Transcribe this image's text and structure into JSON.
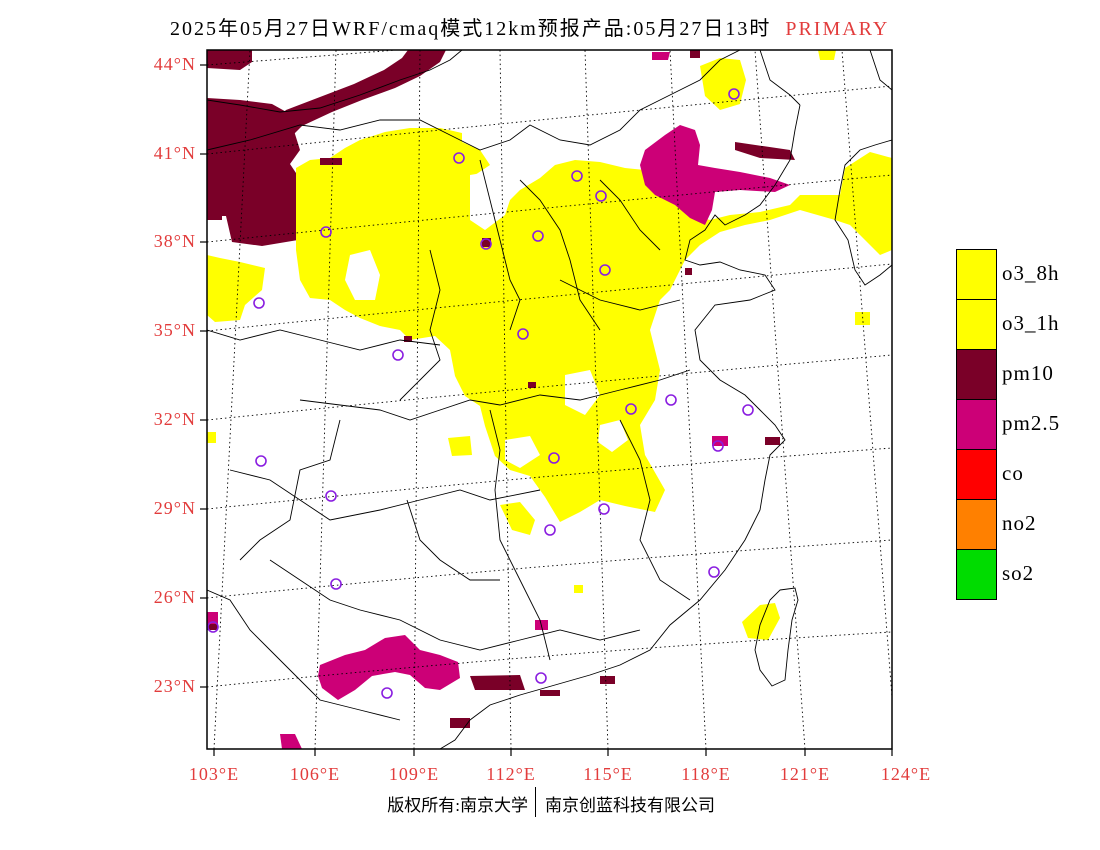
{
  "title": {
    "text": "2025年05月27日WRF/cmaq模式12km预报产品:05月27日13时",
    "tag": "PRIMARY",
    "tag_color": "#e23c3c"
  },
  "axes": {
    "label_color": "#e23c3c",
    "lat_labels": [
      "44°N",
      "41°N",
      "38°N",
      "35°N",
      "32°N",
      "29°N",
      "26°N",
      "23°N"
    ],
    "lon_labels": [
      "103°E",
      "106°E",
      "109°E",
      "112°E",
      "115°E",
      "118°E",
      "121°E",
      "124°E"
    ]
  },
  "legend": [
    {
      "key": "o3_8h",
      "label": "o3_8h",
      "color": "#ffff00"
    },
    {
      "key": "o3_1h",
      "label": "o3_1h",
      "color": "#ffff00"
    },
    {
      "key": "pm10",
      "label": "pm10",
      "color": "#7a0028"
    },
    {
      "key": "pm25",
      "label": "pm2.5",
      "color": "#cc0077"
    },
    {
      "key": "co",
      "label": "co",
      "color": "#ff0000"
    },
    {
      "key": "no2",
      "label": "no2",
      "color": "#ff8000"
    },
    {
      "key": "so2",
      "label": "so2",
      "color": "#00dc00"
    }
  ],
  "colors": {
    "city_marker": "#8a1ee0",
    "map_lines": "#000000"
  },
  "footer": {
    "left": "版权所有:南京大学",
    "right": "南京创蓝科技有限公司"
  }
}
